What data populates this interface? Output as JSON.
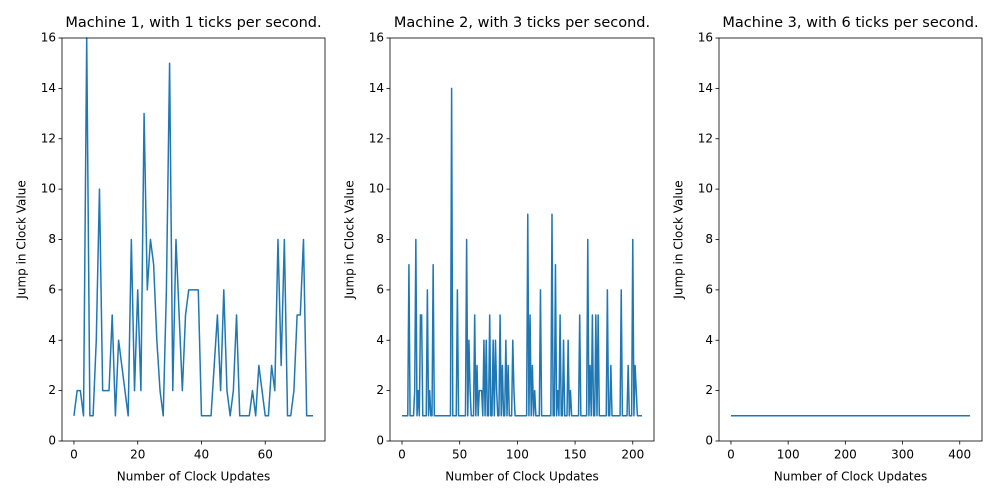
{
  "chart_data": [
    {
      "type": "line",
      "title": "Machine 1, with 1 ticks per second.",
      "xlabel": "Number of Clock Updates",
      "ylabel": "Jump in Clock Value",
      "color": "#1f77b4",
      "values": [
        1,
        2,
        2,
        1,
        16,
        1,
        1,
        4,
        10,
        2,
        2,
        2,
        5,
        1,
        4,
        3,
        2,
        1,
        8,
        2,
        6,
        2,
        13,
        6,
        8,
        7,
        4,
        2,
        1,
        6,
        15,
        2,
        8,
        5,
        2,
        5,
        6,
        6,
        6,
        6,
        1,
        1,
        1,
        1,
        3,
        5,
        2,
        6,
        2,
        1,
        2,
        5,
        1,
        1,
        1,
        1,
        2,
        1,
        3,
        2,
        1,
        1,
        3,
        2,
        8,
        3,
        8,
        1,
        1,
        2,
        5,
        5,
        8,
        1,
        1,
        1
      ],
      "xlim": [
        -3.75,
        78.75
      ],
      "ylim": [
        0,
        16
      ],
      "xticks": [
        0,
        20,
        40,
        60
      ],
      "yticks": [
        0,
        2,
        4,
        6,
        8,
        10,
        12,
        14,
        16
      ]
    },
    {
      "type": "line",
      "title": "Machine 2, with 3 ticks per second.",
      "xlabel": "Number of Clock Updates",
      "ylabel": "Jump in Clock Value",
      "color": "#1f77b4",
      "values": [
        1,
        1,
        1,
        1,
        1,
        1,
        7,
        1,
        1,
        1,
        1,
        2,
        8,
        1,
        2,
        1,
        5,
        5,
        1,
        1,
        1,
        1,
        6,
        1,
        2,
        1,
        1,
        7,
        1,
        1,
        1,
        1,
        1,
        1,
        1,
        1,
        1,
        1,
        1,
        1,
        1,
        1,
        1,
        14,
        1,
        1,
        1,
        1,
        6,
        1,
        1,
        1,
        1,
        1,
        1,
        1,
        8,
        1,
        4,
        2,
        1,
        1,
        1,
        5,
        1,
        3,
        1,
        2,
        2,
        2,
        1,
        4,
        1,
        4,
        1,
        1,
        5,
        1,
        1,
        4,
        1,
        4,
        2,
        1,
        1,
        5,
        1,
        3,
        1,
        1,
        4,
        1,
        3,
        1,
        1,
        1,
        4,
        2,
        1,
        1,
        1,
        1,
        1,
        1,
        1,
        1,
        1,
        1,
        1,
        9,
        1,
        5,
        1,
        3,
        1,
        2,
        1,
        1,
        1,
        1,
        6,
        1,
        1,
        1,
        1,
        1,
        1,
        1,
        1,
        1,
        9,
        1,
        1,
        7,
        1,
        2,
        1,
        5,
        1,
        1,
        4,
        1,
        1,
        1,
        4,
        1,
        2,
        1,
        1,
        1,
        1,
        1,
        1,
        1,
        5,
        1,
        1,
        1,
        1,
        1,
        1,
        8,
        1,
        3,
        1,
        5,
        1,
        1,
        5,
        1,
        5,
        1,
        1,
        1,
        1,
        1,
        1,
        1,
        6,
        1,
        1,
        3,
        1,
        1,
        1,
        1,
        1,
        1,
        1,
        1,
        6,
        1,
        1,
        1,
        1,
        1,
        3,
        1,
        1,
        1,
        8,
        1,
        3,
        2,
        1,
        1,
        1,
        1,
        1
      ],
      "xlim": [
        -10.4,
        218.4
      ],
      "ylim": [
        0,
        16
      ],
      "xticks": [
        0,
        50,
        100,
        150,
        200
      ],
      "yticks": [
        0,
        2,
        4,
        6,
        8,
        10,
        12,
        14,
        16
      ]
    },
    {
      "type": "line",
      "title": "Machine 3, with 6 ticks per second.",
      "xlabel": "Number of Clock Updates",
      "ylabel": "Jump in Clock Value",
      "color": "#1f77b4",
      "values": [
        1,
        1,
        1,
        1,
        1,
        1,
        1,
        1,
        1,
        1,
        1,
        1,
        1,
        1,
        1,
        1,
        1,
        1,
        1,
        1,
        1,
        1,
        1,
        1,
        1,
        1,
        1,
        1,
        1,
        1,
        1,
        1,
        1,
        1,
        1,
        1,
        1,
        1,
        1,
        1,
        1,
        1,
        1,
        1,
        1,
        1,
        1,
        1,
        1,
        1,
        1,
        1,
        1,
        1,
        1,
        1,
        1,
        1,
        1,
        1,
        1,
        1,
        1,
        1,
        1,
        1,
        1,
        1,
        1,
        1,
        1,
        1,
        1,
        1,
        1,
        1,
        1,
        1,
        1,
        1,
        1,
        1,
        1,
        1,
        1,
        1,
        1,
        1,
        1,
        1,
        1,
        1,
        1,
        1,
        1,
        1,
        1,
        1,
        1,
        1,
        1,
        1,
        1,
        1,
        1,
        1,
        1,
        1,
        1,
        1,
        1,
        1,
        1,
        1,
        1,
        1,
        1,
        1,
        1,
        1,
        1,
        1,
        1,
        1,
        1,
        1,
        1,
        1,
        1,
        1,
        1,
        1,
        1,
        1,
        1,
        1,
        1,
        1,
        1,
        1,
        1,
        1,
        1,
        1,
        1,
        1,
        1,
        1,
        1,
        1,
        1,
        1,
        1,
        1,
        1,
        1,
        1,
        1,
        1,
        1,
        1,
        1,
        1,
        1,
        1,
        1,
        1,
        1,
        1,
        1,
        1,
        1,
        1,
        1,
        1,
        1,
        1,
        1,
        1,
        1,
        1,
        1,
        1,
        1,
        1,
        1,
        1,
        1,
        1,
        1,
        1,
        1,
        1,
        1,
        1,
        1,
        1,
        1,
        1,
        1,
        1,
        1,
        1,
        1,
        1,
        1,
        1,
        1,
        1,
        1,
        1,
        1,
        1,
        1,
        1,
        1,
        1,
        1,
        1,
        1,
        1,
        1,
        1,
        1,
        1,
        1,
        1,
        1,
        1,
        1,
        1,
        1,
        1,
        1,
        1,
        1,
        1,
        1,
        1,
        1,
        1,
        1,
        1,
        1,
        1,
        1,
        1,
        1,
        1,
        1,
        1,
        1,
        1,
        1,
        1,
        1,
        1,
        1,
        1,
        1,
        1,
        1,
        1,
        1,
        1,
        1,
        1,
        1,
        1,
        1,
        1,
        1,
        1,
        1,
        1,
        1,
        1,
        1,
        1,
        1,
        1,
        1,
        1,
        1,
        1,
        1,
        1,
        1,
        1,
        1,
        1,
        1,
        1,
        1,
        1,
        1,
        1,
        1,
        1,
        1,
        1,
        1,
        1,
        1,
        1,
        1,
        1,
        1,
        1,
        1,
        1,
        1,
        1,
        1,
        1,
        1,
        1,
        1,
        1,
        1,
        1,
        1,
        1,
        1,
        1,
        1,
        1,
        1,
        1,
        1,
        1,
        1,
        1,
        1,
        1,
        1,
        1,
        1,
        1,
        1,
        1,
        1,
        1,
        1,
        1,
        1,
        1,
        1,
        1,
        1,
        1,
        1,
        1,
        1,
        1,
        1,
        1,
        1,
        1,
        1,
        1,
        1,
        1,
        1,
        1,
        1,
        1,
        1,
        1,
        1,
        1,
        1,
        1,
        1,
        1,
        1,
        1,
        1,
        1,
        1,
        1,
        1,
        1,
        1,
        1,
        1,
        1,
        1,
        1,
        1,
        1,
        1,
        1,
        1,
        1,
        1,
        1,
        1,
        1,
        1,
        1,
        1,
        1,
        1,
        1,
        1,
        1,
        1,
        1,
        1,
        1,
        1,
        1,
        1,
        1,
        1,
        1,
        1,
        1
      ],
      "xlim": [
        -20.9,
        438.9
      ],
      "ylim": [
        0,
        16
      ],
      "xticks": [
        0,
        100,
        200,
        300,
        400
      ],
      "yticks": [
        0,
        2,
        4,
        6,
        8,
        10,
        12,
        14,
        16
      ]
    }
  ]
}
